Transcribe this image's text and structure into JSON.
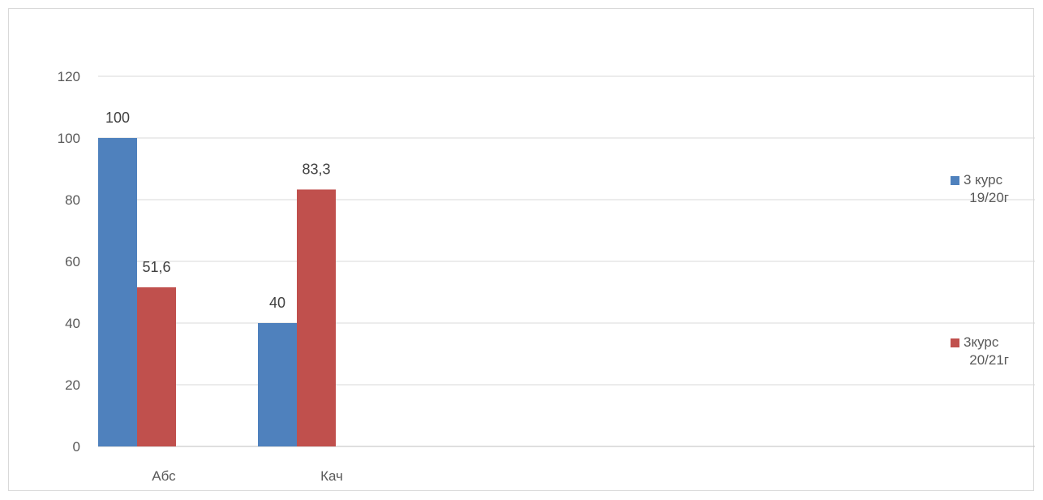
{
  "chart_data": {
    "type": "bar",
    "title": "",
    "xlabel": "",
    "ylabel": "",
    "categories": [
      "Абс",
      "Кач"
    ],
    "series": [
      {
        "name_lines": [
          "3 курс",
          "19/20г"
        ],
        "color": "#4f81bd",
        "values": [
          100,
          40
        ],
        "labels": [
          "100",
          "40"
        ]
      },
      {
        "name_lines": [
          "3курс",
          "20/21г"
        ],
        "color": "#c0504d",
        "values": [
          51.6,
          83.3
        ],
        "labels": [
          "51,6",
          "83,3"
        ]
      }
    ],
    "ylim": [
      0,
      120
    ],
    "yticks": [
      0,
      20,
      40,
      60,
      80,
      100,
      120
    ],
    "grid": true,
    "legend_position": "right"
  }
}
